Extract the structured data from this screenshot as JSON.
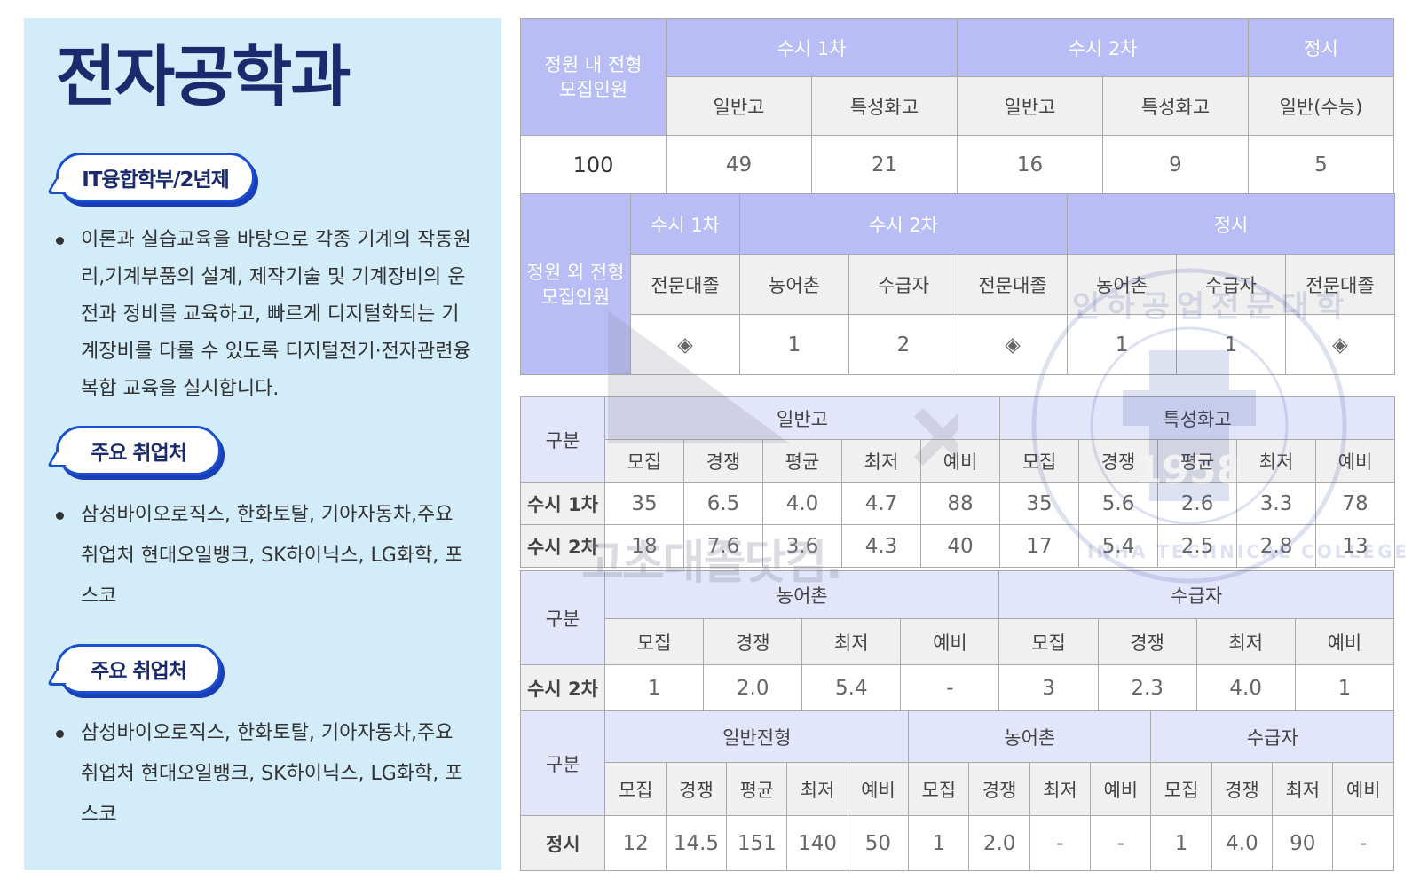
{
  "left": {
    "title": "전자공학과",
    "tag1": "IT융합학부/2년제",
    "desc": "이론과 실습교육을 바탕으로 각종 기계의 작동원리,기계부품의 설계, 제작기술 및 기계장비의 운전과 정비를 교육하고, 빠르게 디지털화되는 기계장비를 다룰 수 있도록 디지털전기·전자관련융복합 교육을 실시합니다.",
    "tag2": "주요 취업처",
    "jobs1": "삼성바이오로직스, 한화토탈, 기아자동차,주요 취업처 현대오일뱅크, SK하이닉스, LG화학, 포스코",
    "tag3": "주요 취업처",
    "jobs2": "삼성바이오로직스, 한화토탈, 기아자동차,주요 취업처 현대오일뱅크, SK하이닉스, LG화학, 포스코"
  },
  "t1": {
    "label": "정원 내 전형\n모집인원",
    "h_su1": "수시 1차",
    "h_su2": "수시 2차",
    "h_jung": "정시",
    "s1": "일반고",
    "s2": "특성화고",
    "s3": "일반고",
    "s4": "특성화고",
    "s5": "일반(수능)",
    "total": "100",
    "v1": "49",
    "v2": "21",
    "v3": "16",
    "v4": "9",
    "v5": "5"
  },
  "t2": {
    "label": "정원 외 전형\n모집인원",
    "h_su1": "수시 1차",
    "h_su2": "수시 2차",
    "h_jung": "정시",
    "s": [
      "전문대졸",
      "농어촌",
      "수급자",
      "전문대졸",
      "농어촌",
      "수급자",
      "전문대졸"
    ],
    "v": [
      "◈",
      "1",
      "2",
      "◈",
      "1",
      "1",
      "◈"
    ]
  },
  "t3": {
    "gubun": "구분",
    "g1": "일반고",
    "g2": "특성화고",
    "sub": [
      "모집",
      "경쟁",
      "평균",
      "최저",
      "예비",
      "모집",
      "경쟁",
      "평균",
      "최저",
      "예비"
    ],
    "rows": [
      {
        "label": "수시 1차",
        "vals": [
          "35",
          "6.5",
          "4.0",
          "4.7",
          "88",
          "35",
          "5.6",
          "2.6",
          "3.3",
          "78"
        ]
      },
      {
        "label": "수시 2차",
        "vals": [
          "18",
          "7.6",
          "3.6",
          "4.3",
          "40",
          "17",
          "5.4",
          "2.5",
          "2.8",
          "13"
        ]
      }
    ]
  },
  "t4": {
    "gubun": "구분",
    "g1": "농어촌",
    "g2": "수급자",
    "sub": [
      "모집",
      "경쟁",
      "최저",
      "예비",
      "모집",
      "경쟁",
      "최저",
      "예비"
    ],
    "row_label": "수시 2차",
    "vals": [
      "1",
      "2.0",
      "5.4",
      "-",
      "3",
      "2.3",
      "4.0",
      "1"
    ]
  },
  "t5": {
    "gubun": "구분",
    "g1": "일반전형",
    "g2": "농어촌",
    "g3": "수급자",
    "sub": [
      "모집",
      "경쟁",
      "평균",
      "최저",
      "예비",
      "모집",
      "경쟁",
      "최저",
      "예비",
      "모집",
      "경쟁",
      "최저",
      "예비"
    ],
    "row_label": "정시",
    "vals": [
      "12",
      "14.5",
      "151",
      "140",
      "50",
      "1",
      "2.0",
      "-",
      "-",
      "1",
      "4.0",
      "90",
      "-"
    ]
  },
  "watermark": {
    "site": "고초대졸닷컴.",
    "seal_text": "인하공업전문대학",
    "seal_en": "INHA TECHNICAL COLLEGE",
    "seal_year": "1958"
  }
}
